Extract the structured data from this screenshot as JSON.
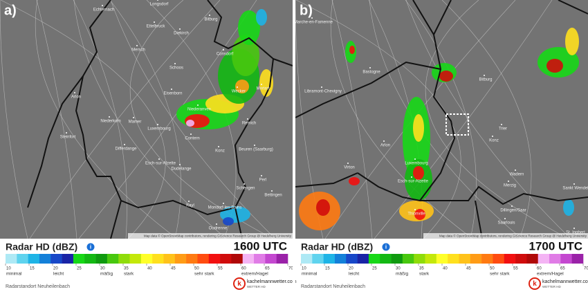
{
  "panels": [
    {
      "label": "a)",
      "places": [
        "Longsdorf",
        "Echternach",
        "Ettelbruck",
        "Diekirch",
        "Mersch",
        "Bitburg",
        "Consdorf",
        "Schoos",
        "Eisenborn",
        "Niederanven",
        "Wecker",
        "Mertert",
        "Luxembourg",
        "Contern",
        "Remich",
        "Beuren (Saarburg)",
        "Konz",
        "Esch-sur-Alzette",
        "Dudelange",
        "Differdange",
        "Niederkorn",
        "Steinfort",
        "Schengen",
        "Perl",
        "Mondorf-les-Bains",
        "Bettingen",
        "Oudrenne",
        "Arlon",
        "Mamer",
        "Kayl"
      ],
      "attribution": "Map data © OpenStreetMap contributors, rendering GIScience Research Group @ Heidelberg University",
      "legend": {
        "title": "Radar HD (dBZ)",
        "time": "1600 UTC",
        "ticks": [
          10,
          15,
          20,
          25,
          30,
          35,
          40,
          45,
          50,
          55,
          60,
          65,
          70
        ],
        "categories": [
          "minimal",
          "leicht",
          "mäßig",
          "stark",
          "sehr stark",
          "extrem/Hagel"
        ],
        "station": "Radarstandort Neuheilenbach",
        "brand": "kachelmannwetter.com",
        "brand_sub": "WETTER HD"
      }
    },
    {
      "label": "b)",
      "places": [
        "Marche-en-Famenne",
        "Bastogne",
        "Libramont-Chevigny",
        "Bitburg",
        "Trier",
        "Konz",
        "Arlon",
        "Luxembourg",
        "Esch-sur-Alzette",
        "Virton",
        "Thionville",
        "Merzig",
        "Wadern",
        "Dillingen/Saar",
        "Saarlouis",
        "St. Ingbert",
        "Sankt Wendel"
      ],
      "attribution": "Map data © OpenStreetMap contributors, rendering GIScience Research Group @ Heidelberg University",
      "legend": {
        "title": "Radar HD (dBZ)",
        "time": "1700 UTC",
        "ticks": [
          10,
          15,
          20,
          25,
          30,
          35,
          40,
          45,
          50,
          55,
          60,
          65,
          70
        ],
        "categories": [
          "minimal",
          "leicht",
          "mäßig",
          "stark",
          "sehr stark",
          "extrem/Hagel"
        ],
        "station": "Radarstandort Neuheilenbach",
        "brand": "kachelmannwetter.com",
        "brand_sub": "WETTER HD"
      }
    }
  ]
}
